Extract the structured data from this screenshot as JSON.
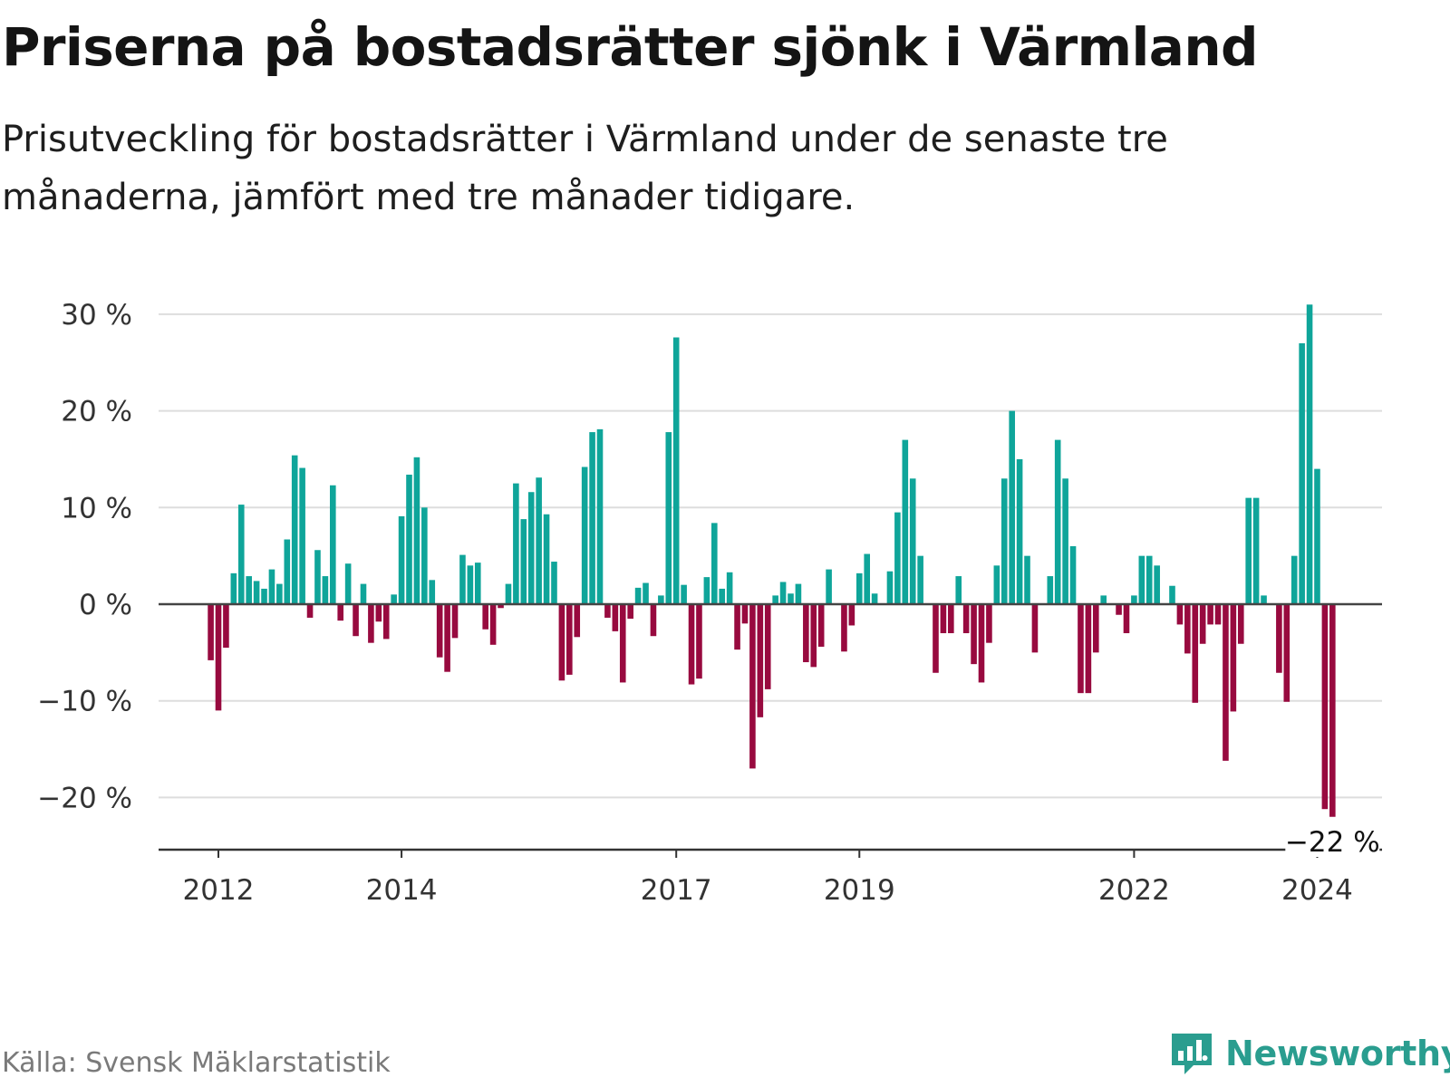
{
  "header": {
    "title": "Priserna på bostadsrätter sjönk i Värmland",
    "subtitle": "Prisutveckling för bostadsrätter i Värmland under de senaste tre månaderna, jämfört med tre månader tidigare."
  },
  "footer": {
    "source": "Källa: Svensk Mäklarstatistik",
    "brand": "Newsworthy"
  },
  "colors": {
    "positive": "#0fa59a",
    "negative": "#980a3f",
    "grid": "#dddddd",
    "axis": "#333333",
    "brand": "#2a9d8f"
  },
  "chart_data": {
    "type": "bar",
    "title": "Priserna på bostadsrätter sjönk i Värmland",
    "xlabel": "",
    "ylabel": "",
    "unit": "%",
    "ylim": [
      -25,
      32
    ],
    "yticks": [
      -20,
      -10,
      0,
      10,
      20,
      30
    ],
    "ytick_labels": [
      "−20 %",
      "−10 %",
      "0 %",
      "10 %",
      "20 %",
      "30 %"
    ],
    "xticks": [
      {
        "label": "2012",
        "index": 0
      },
      {
        "label": "2014",
        "index": 24
      },
      {
        "label": "2017",
        "index": 60
      },
      {
        "label": "2019",
        "index": 84
      },
      {
        "label": "2022",
        "index": 120
      },
      {
        "label": "2024",
        "index": 144
      }
    ],
    "bars_start_index": -1,
    "grid": true,
    "annotation": {
      "text": "−22 %",
      "target": "last"
    },
    "values": [
      -5.8,
      -11,
      -4.5,
      3.2,
      10.3,
      2.9,
      2.4,
      1.6,
      3.6,
      2.1,
      6.7,
      15.4,
      14.1,
      -1.4,
      5.6,
      2.9,
      12.3,
      -1.7,
      4.2,
      -3.3,
      2.1,
      -4,
      -1.8,
      -3.6,
      1.0,
      9.1,
      13.4,
      15.2,
      10.0,
      2.5,
      -5.5,
      -7.0,
      -3.5,
      5.1,
      4.0,
      4.3,
      -2.6,
      -4.2,
      -0.4,
      2.1,
      12.5,
      8.8,
      11.6,
      13.1,
      9.3,
      4.4,
      -7.9,
      -7.3,
      -3.4,
      14.2,
      17.8,
      18.1,
      -1.4,
      -2.8,
      -8.1,
      -1.5,
      1.7,
      2.2,
      -3.3,
      0.9,
      17.8,
      27.6,
      2.0,
      -8.3,
      -7.7,
      2.8,
      8.4,
      1.6,
      3.3,
      -4.7,
      -2.0,
      -17.0,
      -11.7,
      -8.8,
      0.9,
      2.3,
      1.1,
      2.1,
      -6.0,
      -6.5,
      -4.4,
      3.6,
      0,
      -4.9,
      -2.2,
      3.2,
      5.2,
      1.1,
      0,
      3.4,
      9.5,
      17.0,
      13.0,
      5.0,
      0,
      -7.1,
      -3.0,
      -3.0,
      2.9,
      -3.0,
      -6.2,
      -8.1,
      -4.0,
      4.0,
      13.0,
      20.0,
      15.0,
      5.0,
      -5.0,
      0,
      2.9,
      17.0,
      13.0,
      6.0,
      -9.2,
      -9.2,
      -5.0,
      0.9,
      0,
      -1.1,
      -3.0,
      0.9,
      5.0,
      5.0,
      4.0,
      0,
      1.9,
      -2.1,
      -5.1,
      -10.2,
      -4.1,
      -2.1,
      -2.1,
      -16.2,
      -11.1,
      -4.1,
      11.0,
      11.0,
      0.9,
      0,
      -7.1,
      -10.1,
      5.0,
      27.0,
      31.0,
      14.0,
      -21.2,
      -22.0
    ]
  }
}
